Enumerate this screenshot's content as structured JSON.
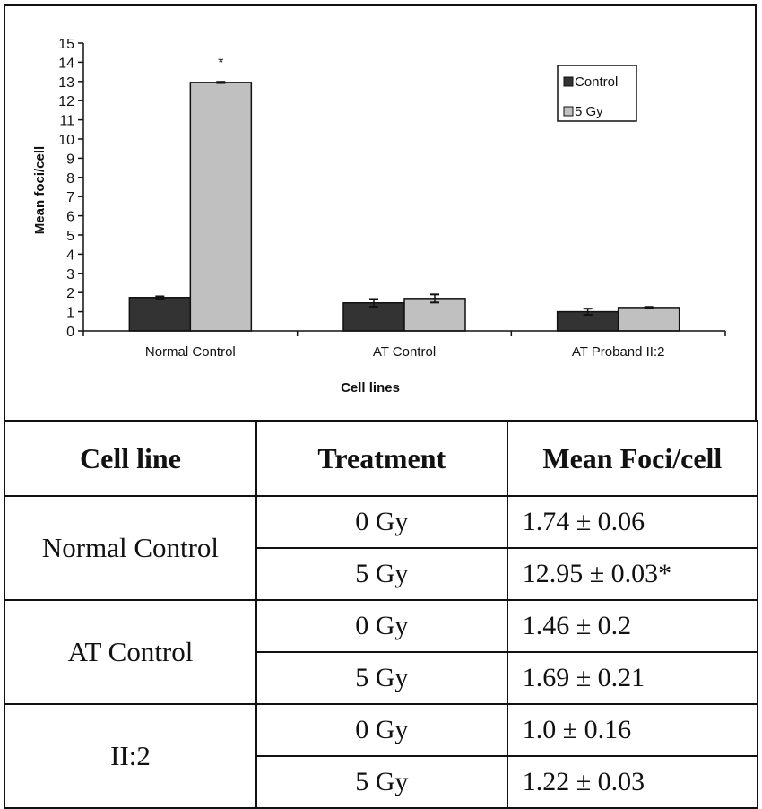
{
  "chart_data": {
    "type": "bar",
    "title": "",
    "xlabel": "Cell lines",
    "ylabel": "Mean foci/cell",
    "ylim": [
      0,
      15
    ],
    "yticks": [
      "0",
      "1",
      "2",
      "3",
      "4",
      "5",
      "6",
      "7",
      "8",
      "9",
      "10",
      "11",
      "12",
      "13",
      "14",
      "15"
    ],
    "categories": [
      "Normal Control",
      "AT Control",
      "AT Proband II:2"
    ],
    "series": [
      {
        "name": "Control",
        "color": "#333333",
        "values": [
          1.74,
          1.46,
          1.0
        ],
        "errors": [
          0.06,
          0.2,
          0.16
        ]
      },
      {
        "name": "5 Gy",
        "color": "#c0c0c0",
        "values": [
          12.95,
          1.69,
          1.22
        ],
        "errors": [
          0.03,
          0.21,
          0.03
        ]
      }
    ],
    "annotations": [
      {
        "category": "Normal Control",
        "series": "5 Gy",
        "text": "*"
      }
    ],
    "legend": {
      "position": "top-right",
      "entries": [
        "Control",
        "5 Gy"
      ]
    },
    "grid": false
  },
  "table": {
    "headers": [
      "Cell line",
      "Treatment",
      "Mean Foci/cell"
    ],
    "groups": [
      {
        "cell_line": "Normal Control",
        "rows": [
          {
            "treatment": "0 Gy",
            "value": "1.74 ± 0.06"
          },
          {
            "treatment": "5 Gy",
            "value": "12.95 ± 0.03*"
          }
        ]
      },
      {
        "cell_line": "AT Control",
        "rows": [
          {
            "treatment": "0 Gy",
            "value": "1.46 ± 0.2"
          },
          {
            "treatment": "5 Gy",
            "value": "1.69 ± 0.21"
          }
        ]
      },
      {
        "cell_line": "II:2",
        "rows": [
          {
            "treatment": "0 Gy",
            "value": "1.0 ± 0.16"
          },
          {
            "treatment": "5 Gy",
            "value": "1.22 ± 0.03"
          }
        ]
      }
    ]
  }
}
